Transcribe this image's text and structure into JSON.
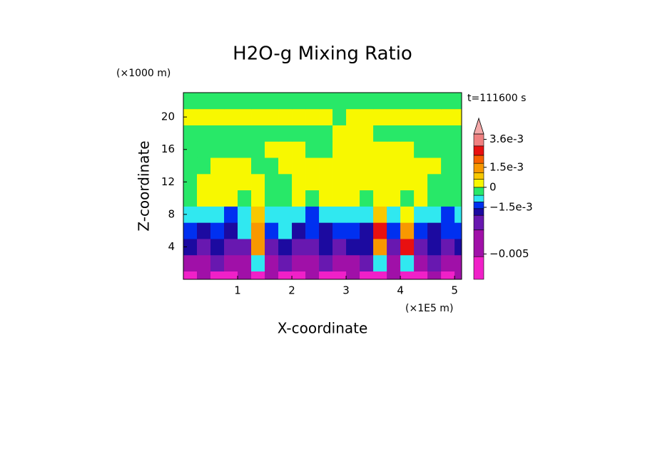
{
  "chart_data": {
    "type": "contour",
    "title": "H2O-g Mixing Ratio",
    "xlabel": "X-coordinate",
    "ylabel": "Z-coordinate",
    "x_unit": "(×1E5 m)",
    "y_unit": "(×1000 m)",
    "annotation": "t=111600 s",
    "xlim": [
      0,
      5.13
    ],
    "ylim": [
      0,
      23
    ],
    "xticks": [
      1,
      2,
      3,
      4,
      5
    ],
    "yticks": [
      4,
      8,
      12,
      16,
      20
    ],
    "colorbar": {
      "boundaries": [
        -0.0069,
        -0.0052,
        -0.0032,
        -0.0021,
        -0.0016,
        -0.0011,
        -0.0006,
        0,
        0.0006,
        0.0011,
        0.0018,
        0.0024,
        0.0031,
        0.004
      ],
      "colors": [
        "#f020c8",
        "#a010a8",
        "#6818b0",
        "#1c0aa0",
        "#0030f0",
        "#30e8f0",
        "#28e868",
        "#f8f800",
        "#f8c800",
        "#f89800",
        "#f86000",
        "#e81010",
        "#f08080"
      ],
      "extend_color": "#f4a8a8",
      "ticks": [
        {
          "value": 0.0036,
          "label": "3.6e-3"
        },
        {
          "value": 0.0015,
          "label": "1.5e-3"
        },
        0,
        {
          "value": -0.0015,
          "label": "−1.5e-3"
        },
        {
          "value": -0.005,
          "label": "−0.005"
        }
      ]
    },
    "field": {
      "x_edges": [
        0,
        0.25,
        0.5,
        0.75,
        1,
        1.25,
        1.5,
        1.75,
        2,
        2.25,
        2.5,
        2.75,
        3,
        3.25,
        3.5,
        3.75,
        4,
        4.25,
        4.5,
        4.75,
        5,
        5.13
      ],
      "z_edges": [
        0,
        1,
        3,
        5,
        7,
        9,
        11,
        13,
        15,
        17,
        19,
        21,
        23
      ],
      "values": [
        [
          -0.006,
          -0.004,
          -0.006,
          -0.006,
          -0.004,
          -0.006,
          -0.004,
          -0.006,
          -0.006,
          -0.004,
          -0.006,
          -0.006,
          -0.004,
          -0.006,
          -0.006,
          -0.004,
          -0.006,
          -0.006,
          -0.004,
          -0.006,
          -0.004
        ],
        [
          -0.004,
          -0.004,
          -0.0025,
          -0.004,
          -0.004,
          -0.0009,
          -0.004,
          -0.0025,
          -0.004,
          -0.004,
          -0.0025,
          -0.004,
          -0.004,
          -0.0025,
          -0.0009,
          -0.004,
          -0.0009,
          -0.004,
          -0.0025,
          -0.004,
          -0.004
        ],
        [
          -0.0018,
          -0.0025,
          -0.0018,
          -0.0025,
          -0.0025,
          0.0015,
          -0.0025,
          -0.0018,
          -0.0025,
          -0.0025,
          -0.0018,
          -0.0025,
          -0.0018,
          -0.0018,
          0.0015,
          -0.0025,
          0.0027,
          -0.0025,
          -0.0018,
          -0.0025,
          -0.0018
        ],
        [
          -0.0013,
          -0.0018,
          -0.0013,
          -0.0018,
          -0.0009,
          0.0015,
          -0.0013,
          -0.0009,
          -0.0018,
          -0.0013,
          -0.0018,
          -0.0013,
          -0.0013,
          -0.0018,
          0.0027,
          -0.0013,
          0.0015,
          -0.0013,
          -0.0018,
          -0.0013,
          -0.0013
        ],
        [
          -0.0009,
          -0.0009,
          -0.0009,
          -0.0013,
          -0.0009,
          0.0008,
          -0.0009,
          -0.0009,
          -0.0009,
          -0.0013,
          -0.0009,
          -0.0009,
          -0.0009,
          -0.0009,
          0.0008,
          -0.0009,
          0.0003,
          -0.0009,
          -0.0009,
          -0.0013,
          -0.0009
        ],
        [
          -0.0003,
          0.0003,
          0.0003,
          0.0003,
          -0.0003,
          0.0003,
          -0.0003,
          -0.0003,
          0.0003,
          -0.0003,
          0.0003,
          0.0003,
          0.0003,
          -0.0003,
          0.0003,
          0.0003,
          -0.0003,
          0.0003,
          -0.0003,
          -0.0003,
          -0.0003
        ],
        [
          -0.0003,
          0.0003,
          0.0003,
          0.0003,
          0.0003,
          0.0003,
          -0.0003,
          -0.0003,
          0.0003,
          0.0003,
          0.0003,
          0.0003,
          0.0003,
          0.0003,
          0.0003,
          0.0003,
          0.0003,
          0.0003,
          -0.0003,
          -0.0003,
          -0.0003
        ],
        [
          -0.0003,
          -0.0003,
          0.0003,
          0.0003,
          0.0003,
          -0.0003,
          -0.0003,
          0.0003,
          0.0003,
          0.0003,
          0.0003,
          0.0003,
          0.0003,
          0.0003,
          0.0003,
          0.0003,
          0.0003,
          0.0003,
          0.0003,
          -0.0003,
          -0.0003
        ],
        [
          -0.0003,
          -0.0003,
          -0.0003,
          -0.0003,
          -0.0003,
          -0.0003,
          0.0003,
          0.0003,
          0.0003,
          -0.0003,
          -0.0003,
          0.0003,
          0.0003,
          0.0003,
          0.0003,
          0.0003,
          0.0003,
          -0.0003,
          -0.0003,
          -0.0003,
          -0.0003
        ],
        [
          -0.0003,
          -0.0003,
          -0.0003,
          -0.0003,
          -0.0003,
          -0.0003,
          -0.0003,
          -0.0003,
          -0.0003,
          -0.0003,
          -0.0003,
          0.0003,
          0.0003,
          0.0003,
          -0.0003,
          -0.0003,
          -0.0003,
          -0.0003,
          -0.0003,
          -0.0003,
          -0.0003
        ],
        [
          0.0003,
          0.0003,
          0.0003,
          0.0003,
          0.0003,
          0.0003,
          0.0003,
          0.0003,
          0.0003,
          0.0003,
          0.0003,
          -0.0003,
          0.0003,
          0.0003,
          0.0003,
          0.0003,
          0.0003,
          0.0003,
          0.0003,
          0.0003,
          0.0003
        ],
        [
          -0.0003,
          -0.0003,
          -0.0003,
          -0.0003,
          -0.0003,
          -0.0003,
          -0.0003,
          -0.0003,
          -0.0003,
          -0.0003,
          -0.0003,
          -0.0003,
          -0.0003,
          -0.0003,
          -0.0003,
          -0.0003,
          -0.0003,
          -0.0003,
          -0.0003,
          -0.0003,
          -0.0003
        ]
      ]
    }
  }
}
